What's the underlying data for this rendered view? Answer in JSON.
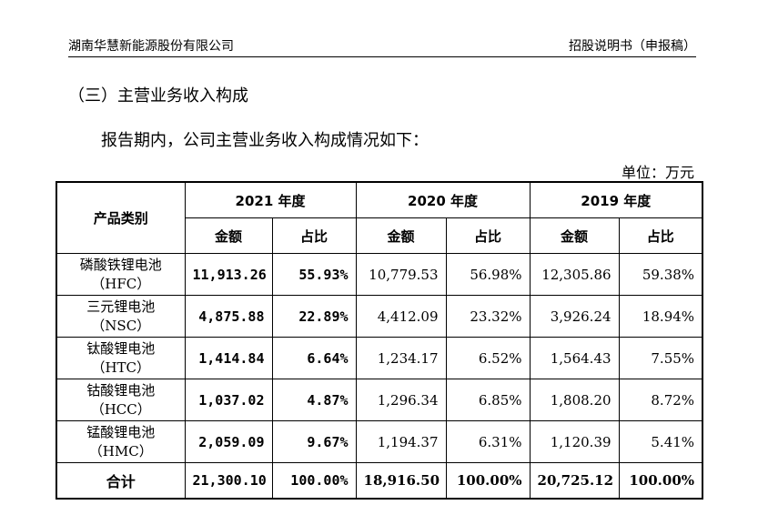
{
  "header": {
    "company": "湖南华慧新能源股份有限公司",
    "doc": "招股说明书（申报稿）"
  },
  "section_title": "（三）主营业务收入构成",
  "intro": "报告期内，公司主营业务收入构成情况如下：",
  "unit": "单位：万元",
  "table": {
    "col_category": "产品类别",
    "years": [
      "2021 年度",
      "2020 年度",
      "2019 年度"
    ],
    "sub_amount": "金额",
    "sub_ratio": "占比",
    "rows": [
      {
        "name": "磷酸铁锂电池",
        "code": "（HFC）",
        "vals": [
          "11,913.26",
          "55.93%",
          "10,779.53",
          "56.98%",
          "12,305.86",
          "59.38%"
        ]
      },
      {
        "name": "三元锂电池",
        "code": "（NSC）",
        "vals": [
          "4,875.88",
          "22.89%",
          "4,412.09",
          "23.32%",
          "3,926.24",
          "18.94%"
        ]
      },
      {
        "name": "钛酸锂电池",
        "code": "（HTC）",
        "vals": [
          "1,414.84",
          "6.64%",
          "1,234.17",
          "6.52%",
          "1,564.43",
          "7.55%"
        ]
      },
      {
        "name": "钴酸锂电池",
        "code": "（HCC）",
        "vals": [
          "1,037.02",
          "4.87%",
          "1,296.34",
          "6.85%",
          "1,808.20",
          "8.72%"
        ]
      },
      {
        "name": "锰酸锂电池",
        "code": "（HMC）",
        "vals": [
          "2,059.09",
          "9.67%",
          "1,194.37",
          "6.31%",
          "1,120.39",
          "5.41%"
        ]
      }
    ],
    "total": {
      "label": "合计",
      "vals": [
        "21,300.10",
        "100.00%",
        "18,916.50",
        "100.00%",
        "20,725.12",
        "100.00%"
      ]
    }
  }
}
